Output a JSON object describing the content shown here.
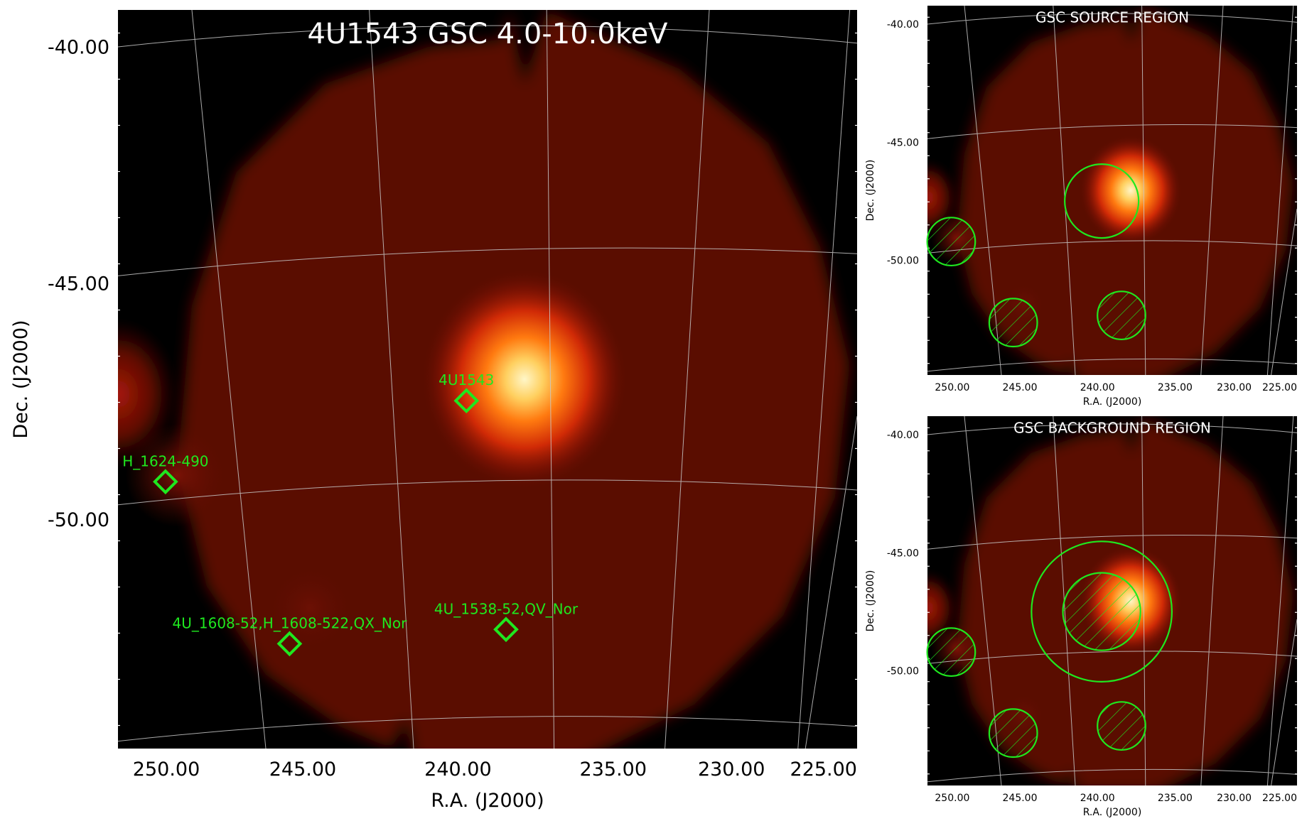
{
  "colors": {
    "background": "#000000",
    "image_body": "#5a0c02",
    "source_core": "#fff6c8",
    "marker": "#1fe81f",
    "grid": "#c8c8c8",
    "panel_title": "#ffffff"
  },
  "chart_data": [
    {
      "type": "heatmap",
      "title": "4U1543 GSC 4.0-10.0keV",
      "xlabel": "R.A. (J2000)",
      "ylabel": "Dec. (J2000)",
      "x_ticks": [
        "250.00",
        "245.00",
        "240.00",
        "235.00",
        "230.00",
        "225.00"
      ],
      "y_ticks": [
        "-40.00",
        "-45.00",
        "-50.00"
      ],
      "grid": true,
      "colormap": "hot",
      "sources": [
        {
          "name": "4U1543",
          "ra": 236.8,
          "dec": -47.4
        },
        {
          "name": "H_1624-490",
          "ra": 248.2,
          "dec": -49.1
        },
        {
          "name": "4U_1608-52,H_1608-522,QX_Nor",
          "ra": 243.5,
          "dec": -52.5
        },
        {
          "name": "4U_1538-52,QV_Nor",
          "ra": 235.3,
          "dec": -52.2
        }
      ]
    },
    {
      "type": "heatmap",
      "title": "GSC SOURCE REGION",
      "xlabel": "R.A. (J2000)",
      "ylabel": "Dec. (J2000)",
      "x_ticks": [
        "250.00",
        "245.00",
        "240.00",
        "235.00",
        "230.00",
        "225.00"
      ],
      "y_ticks": [
        "-40.00",
        "-45.00",
        "-50.00"
      ],
      "grid": true,
      "regions": [
        {
          "kind": "source-circle",
          "ra": 236.8,
          "dec": -47.4,
          "hatched": false
        },
        {
          "kind": "excluded-circle",
          "ra": 248.2,
          "dec": -49.1,
          "hatched": true
        },
        {
          "kind": "excluded-circle",
          "ra": 243.5,
          "dec": -52.5,
          "hatched": true
        },
        {
          "kind": "excluded-circle",
          "ra": 235.3,
          "dec": -52.2,
          "hatched": true
        }
      ]
    },
    {
      "type": "heatmap",
      "title": "GSC BACKGROUND REGION",
      "xlabel": "R.A. (J2000)",
      "ylabel": "Dec. (J2000)",
      "x_ticks": [
        "250.00",
        "245.00",
        "240.00",
        "235.00",
        "230.00",
        "225.00"
      ],
      "y_ticks": [
        "-40.00",
        "-45.00",
        "-50.00"
      ],
      "grid": true,
      "regions": [
        {
          "kind": "background-annulus-outer",
          "ra": 236.8,
          "dec": -47.4,
          "hatched": false
        },
        {
          "kind": "excluded-circle",
          "ra": 236.8,
          "dec": -47.4,
          "hatched": true
        },
        {
          "kind": "excluded-circle",
          "ra": 248.2,
          "dec": -49.1,
          "hatched": true
        },
        {
          "kind": "excluded-circle",
          "ra": 243.5,
          "dec": -52.5,
          "hatched": true
        },
        {
          "kind": "excluded-circle",
          "ra": 235.3,
          "dec": -52.2,
          "hatched": true
        }
      ]
    }
  ]
}
